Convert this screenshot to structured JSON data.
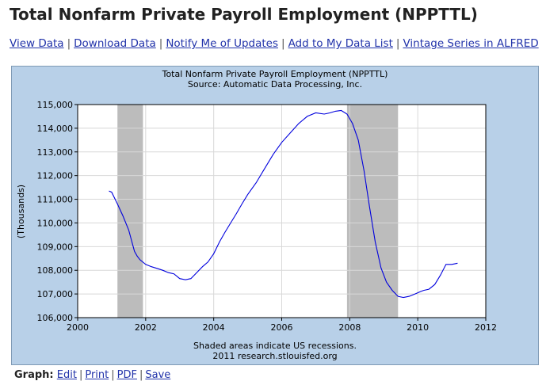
{
  "page": {
    "title": "Total Nonfarm Private Payroll Employment (NPPTTL)"
  },
  "links": [
    {
      "label": "View Data"
    },
    {
      "label": "Download Data"
    },
    {
      "label": "Notify Me of Updates"
    },
    {
      "label": "Add to My Data List"
    },
    {
      "label": "Vintage Series in ALFRED"
    }
  ],
  "graph_links": {
    "label": "Graph:",
    "items": [
      {
        "label": "Edit"
      },
      {
        "label": "Print"
      },
      {
        "label": "PDF"
      },
      {
        "label": "Save"
      }
    ]
  },
  "colors": {
    "panel_bg": "#b8d0e8",
    "plot_bg": "#ffffff",
    "recession": "#bcbcbc",
    "line": "#0000dd"
  },
  "chart_data": {
    "type": "line",
    "title": "Total Nonfarm Private Payroll Employment (NPPTTL)",
    "subtitle": "Source: Automatic Data Processing, Inc.",
    "ylabel": "(Thousands)",
    "xlabel": "",
    "footnote": "Shaded areas indicate US recessions.",
    "credit": "2011 research.stlouisfed.org",
    "xlim": [
      2000,
      2012
    ],
    "ylim": [
      106000,
      115000
    ],
    "x_ticks": [
      2000,
      2002,
      2004,
      2006,
      2008,
      2010,
      2012
    ],
    "y_ticks": [
      106000,
      107000,
      108000,
      109000,
      110000,
      111000,
      112000,
      113000,
      114000,
      115000
    ],
    "y_tick_labels": [
      "106,000",
      "107,000",
      "108,000",
      "109,000",
      "110,000",
      "111,000",
      "112,000",
      "113,000",
      "114,000",
      "115,000"
    ],
    "grid": true,
    "recessions": [
      [
        2001.17,
        2001.92
      ],
      [
        2007.92,
        2009.42
      ]
    ],
    "series": [
      {
        "x": [
          2000.92,
          2001.0,
          2001.17,
          2001.33,
          2001.5,
          2001.67,
          2001.75,
          2001.83,
          2002.0,
          2002.17,
          2002.33,
          2002.5,
          2002.67,
          2002.83,
          2003.0,
          2003.17,
          2003.33,
          2003.5,
          2003.67,
          2003.83,
          2004.0,
          2004.17,
          2004.33,
          2004.5,
          2004.67,
          2004.83,
          2005.0,
          2005.25,
          2005.5,
          2005.75,
          2006.0,
          2006.25,
          2006.5,
          2006.75,
          2007.0,
          2007.25,
          2007.42,
          2007.58,
          2007.75,
          2007.92,
          2008.08,
          2008.25,
          2008.42,
          2008.58,
          2008.75,
          2008.92,
          2009.08,
          2009.25,
          2009.42,
          2009.58,
          2009.75,
          2009.92,
          2010.0,
          2010.08,
          2010.17,
          2010.33,
          2010.5,
          2010.67,
          2010.83,
          2011.0,
          2011.17
        ],
        "values": [
          111350,
          111300,
          110800,
          110300,
          109700,
          108800,
          108600,
          108450,
          108250,
          108150,
          108080,
          108000,
          107900,
          107850,
          107650,
          107600,
          107650,
          107900,
          108150,
          108350,
          108700,
          109200,
          109600,
          110000,
          110400,
          110800,
          111200,
          111700,
          112300,
          112900,
          113400,
          113800,
          114200,
          114500,
          114650,
          114600,
          114650,
          114720,
          114750,
          114600,
          114200,
          113500,
          112200,
          110700,
          109200,
          108100,
          107500,
          107150,
          106900,
          106850,
          106900,
          107000,
          107050,
          107100,
          107150,
          107200,
          107400,
          107800,
          108250,
          108250,
          108300
        ]
      }
    ]
  }
}
